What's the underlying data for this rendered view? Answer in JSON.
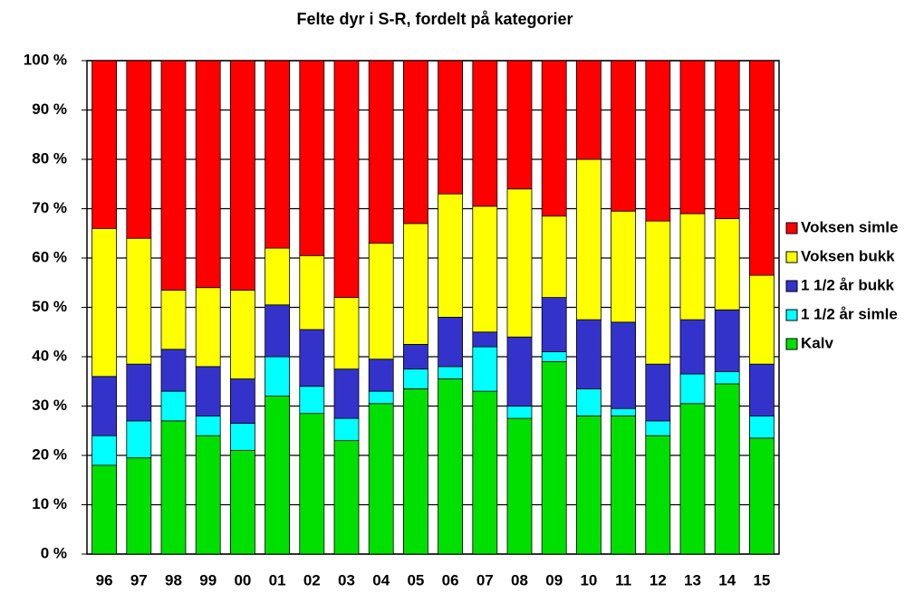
{
  "chart_data": {
    "type": "stacked_bar",
    "title": "Felte dyr i S-R, fordelt på kategorier",
    "categories": [
      "96",
      "97",
      "98",
      "99",
      "00",
      "01",
      "02",
      "03",
      "04",
      "05",
      "06",
      "07",
      "08",
      "09",
      "10",
      "11",
      "12",
      "13",
      "14",
      "15"
    ],
    "series": [
      {
        "name": "Kalv",
        "color": "#00e000",
        "values": [
          18,
          19.5,
          27,
          24,
          21,
          32,
          28.5,
          23,
          30.5,
          33.5,
          35.5,
          33,
          27.5,
          39,
          28,
          28,
          24,
          30.5,
          34.5,
          23.5
        ]
      },
      {
        "name": "1 1/2 år simle",
        "color": "#00ffff",
        "values": [
          6,
          7.5,
          6,
          4,
          5.5,
          8,
          5.5,
          4.5,
          2.5,
          4,
          2.5,
          9,
          2.5,
          2,
          5.5,
          1.5,
          3,
          6,
          2.5,
          4.5
        ]
      },
      {
        "name": "1 1/2 år bukk",
        "color": "#3333cc",
        "values": [
          12,
          11.5,
          8.5,
          10,
          9,
          10.5,
          11.5,
          10,
          6.5,
          5,
          10,
          3,
          14,
          11,
          14,
          17.5,
          11.5,
          11,
          12.5,
          10.5
        ]
      },
      {
        "name": "Voksen bukk",
        "color": "#ffff00",
        "values": [
          30,
          25.5,
          12,
          16,
          18,
          11.5,
          15,
          14.5,
          23.5,
          24.5,
          25,
          25.5,
          30,
          16.5,
          32.5,
          22.5,
          29,
          21.5,
          18.5,
          18
        ]
      },
      {
        "name": "Voksen simle",
        "color": "#ff0000",
        "values": [
          34,
          36,
          46.5,
          46,
          46.5,
          38,
          39.5,
          48,
          37,
          33,
          27,
          29.5,
          26,
          31.5,
          20,
          30.5,
          32.5,
          31,
          32,
          43.5
        ]
      }
    ],
    "ylim": [
      0,
      100
    ],
    "yticks": [
      {
        "value": 0,
        "label": "0 %"
      },
      {
        "value": 10,
        "label": "10 %"
      },
      {
        "value": 20,
        "label": "20 %"
      },
      {
        "value": 30,
        "label": "30 %"
      },
      {
        "value": 40,
        "label": "40 %"
      },
      {
        "value": 50,
        "label": "50 %"
      },
      {
        "value": 60,
        "label": "60 %"
      },
      {
        "value": 70,
        "label": "70 %"
      },
      {
        "value": 80,
        "label": "80 %"
      },
      {
        "value": 90,
        "label": "90 %"
      },
      {
        "value": 100,
        "label": "100 %"
      }
    ],
    "grid": true,
    "legend": "right"
  }
}
